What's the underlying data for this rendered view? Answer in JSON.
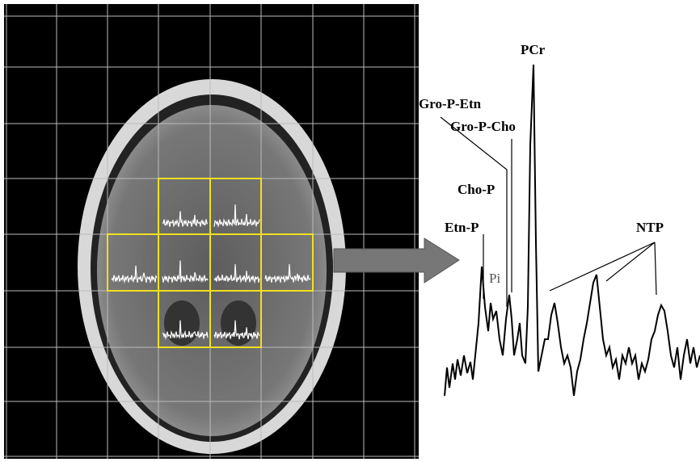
{
  "labels": {
    "pcr": "PCr",
    "gro_p_etn": "Gro-P-Etn",
    "gro_p_cho": "Gro-P-Cho",
    "cho_p": "Cho-P",
    "etn_p": "Etn-P",
    "ntp": "NTP",
    "pi": "Pi"
  }
}
